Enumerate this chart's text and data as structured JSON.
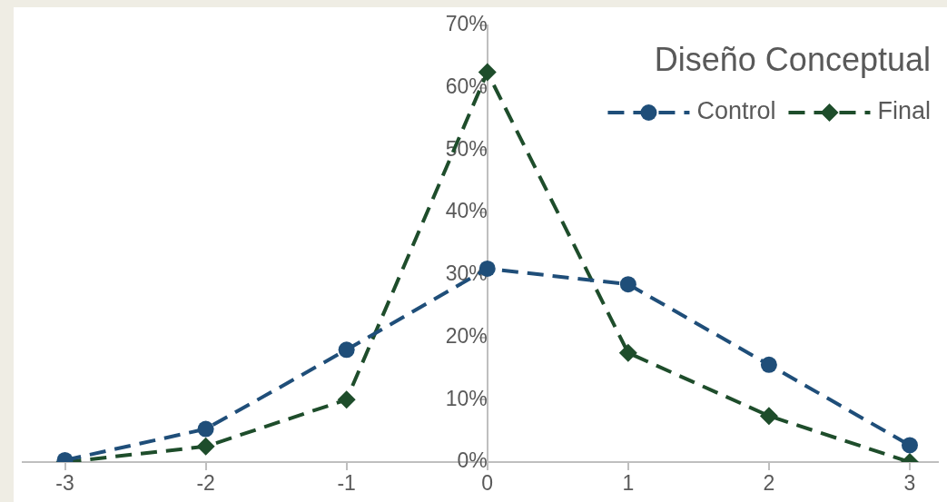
{
  "chart_data": {
    "type": "line",
    "title": "Diseño Conceptual",
    "x": [
      -3,
      -2,
      -1,
      0,
      1,
      2,
      3
    ],
    "series": [
      {
        "name": "Control",
        "color": "#1f4e79",
        "marker": "circle",
        "values": [
          0.3,
          5.3,
          18,
          31,
          28.5,
          15.6,
          2.7
        ]
      },
      {
        "name": "Final",
        "color": "#1e4d2b",
        "marker": "diamond",
        "values": [
          0,
          2.5,
          10,
          62.5,
          17.5,
          7.4,
          0
        ]
      }
    ],
    "xlim": [
      -3.3,
      3.2
    ],
    "xticks": [
      -3,
      -2,
      -1,
      0,
      1,
      2,
      3
    ],
    "ylim": [
      0,
      70
    ],
    "yticks": [
      {
        "value": 0,
        "label": "0%"
      },
      {
        "value": 10,
        "label": "10%"
      },
      {
        "value": 20,
        "label": "20%"
      },
      {
        "value": 30,
        "label": "30%"
      },
      {
        "value": 40,
        "label": "40%"
      },
      {
        "value": 50,
        "label": "50%"
      },
      {
        "value": 60,
        "label": "60%"
      },
      {
        "value": 70,
        "label": "70%"
      }
    ],
    "grid": false,
    "legend": "top right",
    "line_style": "dashed"
  }
}
